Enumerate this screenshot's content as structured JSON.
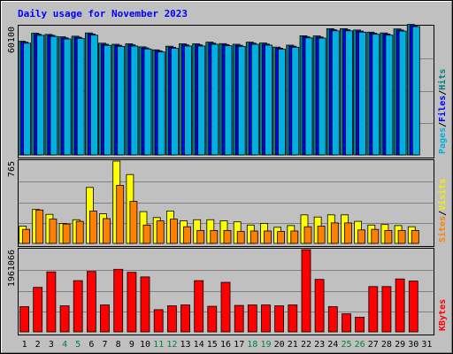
{
  "chart_data": {
    "type": "bar",
    "title": "Daily usage for November 2023",
    "categories": [
      "1",
      "2",
      "3",
      "4",
      "5",
      "6",
      "7",
      "8",
      "9",
      "10",
      "11",
      "12",
      "13",
      "14",
      "15",
      "16",
      "17",
      "18",
      "19",
      "20",
      "21",
      "22",
      "23",
      "24",
      "25",
      "26",
      "27",
      "28",
      "29",
      "30",
      "31"
    ],
    "weekend_days": [
      "4",
      "5",
      "11",
      "12",
      "18",
      "19",
      "25",
      "26"
    ],
    "panels": [
      {
        "name": "hits-files-pages",
        "ytick_label": "60100",
        "ytick_value": 60100,
        "ymax": 60100,
        "axis_labels": [
          {
            "text": "Hits",
            "color": "#008080"
          },
          {
            "text": "/",
            "color": "#000000"
          },
          {
            "text": "Files",
            "color": "#0000ff"
          },
          {
            "text": "/",
            "color": "#000000"
          },
          {
            "text": "Pages",
            "color": "#00b0e0"
          }
        ],
        "series": [
          {
            "name": "Hits",
            "color": "#008080",
            "values": [
              53200,
              57000,
              56400,
              55300,
              55600,
              57100,
              52300,
              51800,
              52000,
              50600,
              49200,
              50900,
              52000,
              52000,
              52800,
              52100,
              51800,
              52800,
              52400,
              50500,
              51400,
              55800,
              55700,
              59100,
              59100,
              58500,
              57500,
              57100,
              59000,
              61100,
              0
            ]
          },
          {
            "name": "Files",
            "color": "#0000ff",
            "values": [
              52800,
              56500,
              56000,
              54800,
              55100,
              56600,
              51800,
              51300,
              51500,
              50100,
              48700,
              50400,
              51500,
              51500,
              52300,
              51600,
              51300,
              52300,
              51900,
              50000,
              50900,
              55300,
              55200,
              58600,
              58600,
              58000,
              57000,
              56600,
              58500,
              60600,
              0
            ]
          },
          {
            "name": "Pages",
            "color": "#00b0e0",
            "values": [
              52300,
              56000,
              55500,
              54300,
              54600,
              56100,
              51300,
              50800,
              51000,
              49600,
              48200,
              49900,
              51000,
              51000,
              51800,
              51100,
              50800,
              51800,
              51400,
              49500,
              50400,
              54800,
              54700,
              58100,
              58100,
              57500,
              56500,
              56100,
              58000,
              60100,
              0
            ]
          }
        ]
      },
      {
        "name": "visits-sites",
        "ytick_label": "765",
        "ytick_value": 765,
        "ymax": 765,
        "axis_labels": [
          {
            "text": "Visits",
            "color": "#f0f000"
          },
          {
            "text": "/",
            "color": "#000000"
          },
          {
            "text": "Sites",
            "color": "#ff8000"
          }
        ],
        "series": [
          {
            "name": "Visits",
            "color": "#ffff00",
            "values": [
              160,
              315,
              270,
              185,
              220,
              520,
              275,
              765,
              640,
              295,
              240,
              300,
              210,
              220,
              220,
              210,
              200,
              170,
              185,
              150,
              165,
              265,
              245,
              265,
              265,
              205,
              170,
              175,
              165,
              155,
              0
            ]
          },
          {
            "name": "Sites",
            "color": "#ff8000",
            "values": [
              130,
              310,
              225,
              180,
              205,
              300,
              230,
              540,
              390,
              170,
              210,
              225,
              155,
              120,
              120,
              120,
              110,
              115,
              115,
              110,
              115,
              155,
              160,
              190,
              190,
              125,
              130,
              120,
              120,
              120,
              0
            ]
          }
        ]
      },
      {
        "name": "kbytes",
        "ytick_label": "1961066",
        "ytick_value": 1961066,
        "ymax": 1961066,
        "axis_labels": [
          {
            "text": "KBytes",
            "color": "#ff0000"
          }
        ],
        "series": [
          {
            "name": "KBytes",
            "color": "#ff0000",
            "values": [
              600000,
              1060000,
              1430000,
              620000,
              1220000,
              1440000,
              640000,
              1490000,
              1420000,
              1310000,
              530000,
              620000,
              640000,
              1220000,
              610000,
              1180000,
              630000,
              640000,
              640000,
              620000,
              640000,
              1960000,
              1250000,
              600000,
              430000,
              350000,
              1080000,
              1080000,
              1260000,
              1210000,
              0
            ]
          }
        ]
      }
    ]
  }
}
